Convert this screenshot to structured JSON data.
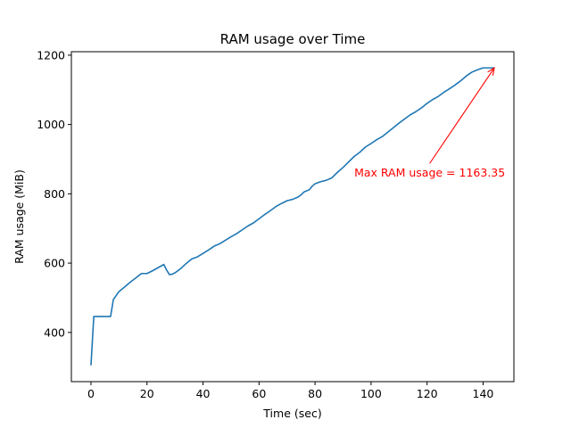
{
  "chart_data": {
    "type": "line",
    "title": "RAM usage over Time",
    "xlabel": "Time (sec)",
    "ylabel": "RAM usage (MiB)",
    "xlim": [
      -7,
      151
    ],
    "ylim": [
      258,
      1210
    ],
    "xticks": [
      0,
      20,
      40,
      60,
      80,
      100,
      120,
      140
    ],
    "yticks": [
      400,
      600,
      800,
      1000,
      1200
    ],
    "grid": false,
    "legend": "none",
    "series": [
      {
        "color": "#1f77b4",
        "x": [
          0,
          1,
          2,
          4,
          6,
          7,
          8,
          10,
          12,
          14,
          16,
          18,
          19,
          20,
          22,
          24,
          26,
          27,
          28,
          29,
          30,
          32,
          34,
          36,
          38,
          40,
          42,
          44,
          46,
          48,
          50,
          52,
          54,
          56,
          58,
          60,
          62,
          64,
          66,
          68,
          70,
          72,
          74,
          75,
          76,
          78,
          79,
          80,
          82,
          84,
          86,
          88,
          90,
          92,
          94,
          96,
          98,
          100,
          102,
          104,
          106,
          108,
          110,
          112,
          114,
          116,
          118,
          120,
          122,
          124,
          126,
          128,
          130,
          132,
          134,
          136,
          138,
          140,
          142,
          144
        ],
        "y": [
          305,
          446,
          446,
          446,
          446,
          446,
          495,
          518,
          531,
          545,
          557,
          570,
          570,
          570,
          578,
          587,
          596,
          580,
          567,
          568,
          572,
          584,
          599,
          612,
          618,
          628,
          638,
          649,
          656,
          666,
          676,
          685,
          696,
          707,
          716,
          728,
          740,
          751,
          763,
          772,
          780,
          784,
          791,
          797,
          805,
          812,
          822,
          829,
          835,
          839,
          846,
          862,
          876,
          892,
          908,
          920,
          935,
          945,
          956,
          965,
          978,
          991,
          1004,
          1016,
          1028,
          1037,
          1048,
          1061,
          1072,
          1081,
          1093,
          1103,
          1114,
          1126,
          1140,
          1151,
          1158,
          1163.35,
          1163.35,
          1163.35
        ]
      }
    ],
    "annotation": {
      "text": "Max RAM usage = 1163.35",
      "color": "#ff0000",
      "xy": [
        144,
        1163.35
      ],
      "xytext": [
        94,
        862
      ]
    }
  }
}
